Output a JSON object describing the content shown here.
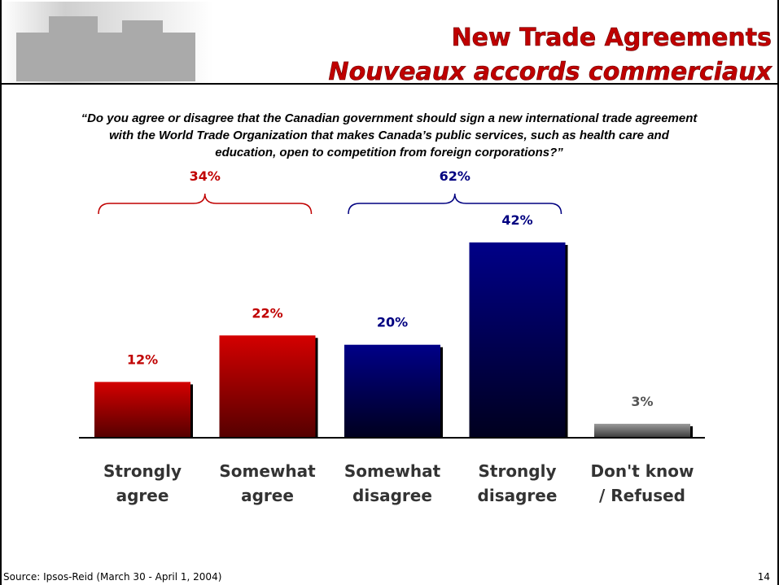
{
  "header": {
    "title": "New Trade Agreements",
    "subtitle": "Nouveaux accords commerciaux"
  },
  "question": [
    "“Do you agree or disagree that the Canadian government should sign a new international trade agreement",
    "with the World Trade Organization that makes Canada’s public services, such as health care and",
    "education, open to competition from foreign corporations?”"
  ],
  "chart_data": {
    "type": "bar",
    "categories": [
      "Strongly\nagree",
      "Somewhat\nagree",
      "Somewhat\ndisagree",
      "Strongly\ndisagree",
      "Don't know\n/ Refused"
    ],
    "values": [
      12,
      22,
      20,
      42,
      3
    ],
    "value_labels": [
      "12%",
      "22%",
      "20%",
      "42%",
      "3%"
    ],
    "colors": [
      "#c00000",
      "#c00000",
      "#000080",
      "#000080",
      "#808080"
    ],
    "groups": [
      {
        "value": 34,
        "label": "34%",
        "color": "#c00000"
      },
      {
        "value": 62,
        "label": "62%",
        "color": "#000080"
      }
    ]
  },
  "source": "Source: Ipsos-Reid (March 30 - April 1, 2004)",
  "page_number": "14"
}
